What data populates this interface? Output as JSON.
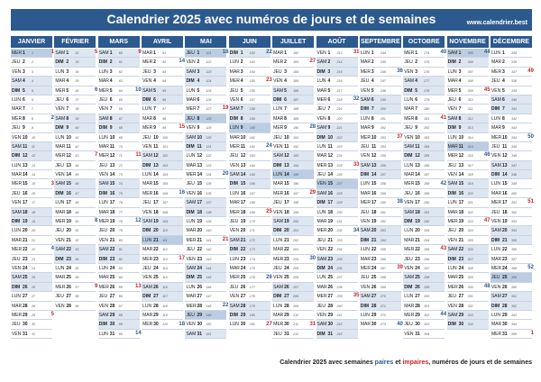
{
  "header": {
    "title": "Calendrier 2025 avec numéros de jours et de semaines",
    "url": "www.calendrier.best"
  },
  "year": 2025,
  "months": [
    "JANVIER",
    "FÉVRIER",
    "MARS",
    "AVRIL",
    "MAI",
    "JUIN",
    "JUILLET",
    "AOÛT",
    "SEPTEMBRE",
    "OCTOBRE",
    "NOVEMBRE",
    "DÉCEMBRE"
  ],
  "weekdays": [
    "LUN",
    "MAR",
    "MER",
    "JEU",
    "VEN",
    "SAM",
    "DIM"
  ],
  "holidays": [
    "1-1",
    "4-21",
    "5-1",
    "5-8",
    "5-29",
    "6-9",
    "7-14",
    "8-15",
    "11-1",
    "11-11",
    "12-25"
  ],
  "colors": {
    "header": "#2d5a8e",
    "weekend": "#dde6f1",
    "holiday": "#bccde3",
    "week_even": "#2d5a8e",
    "week_odd": "#c0282d"
  },
  "footer": {
    "prefix": "Calendrier 2025 avec semaines",
    "even": "paires",
    "and": "et",
    "odd": "impaires",
    "suffix": ", numéros de jours et de semaines"
  }
}
